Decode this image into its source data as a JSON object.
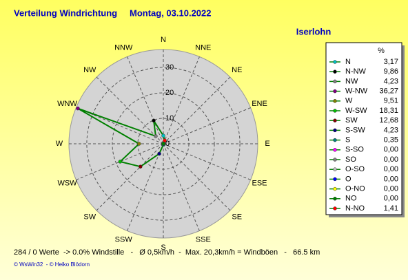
{
  "chart_data": {
    "type": "radar",
    "title": "Verteilung Windrichtung",
    "subtitle": "Montag, 03.10.2022",
    "location": "Iserlohn",
    "categories": [
      "N",
      "NNW",
      "NW",
      "WNW",
      "W",
      "WSW",
      "SW",
      "SSW",
      "S",
      "SSE",
      "SE",
      "ESE",
      "E",
      "ENE",
      "NE",
      "NNE"
    ],
    "direction": "counterclockwise",
    "values": [
      3.17,
      9.86,
      4.23,
      36.27,
      9.51,
      18.31,
      12.68,
      4.23,
      0.35,
      0,
      0,
      0,
      0,
      0,
      0,
      1.41
    ],
    "value_labels": [
      "3,17",
      "9,86",
      "4,23",
      "36,27",
      "9,51",
      "18,31",
      "12,68",
      "4,23",
      "0,35",
      "0,00",
      "0,00",
      "0,00",
      "0,00",
      "0,00",
      "0,00",
      "1,41"
    ],
    "legend_title": "%",
    "legend_names": [
      "N",
      "N-NW",
      "NW",
      "W-NW",
      "W",
      "W-SW",
      "SW",
      "S-SW",
      "S",
      "S-SO",
      "SO",
      "O-SO",
      "O",
      "O-NO",
      "NO",
      "N-NO"
    ],
    "marker_colors": [
      "#00c0c0",
      "#000000",
      "#808080",
      "#800080",
      "#808000",
      "#00c000",
      "#800000",
      "#000080",
      "#008080",
      "#ff00ff",
      "#808080",
      "#c0c0c0",
      "#0000ff",
      "#ffff00",
      "#008000",
      "#ff0000"
    ],
    "color": "#008000",
    "ylim": [
      0,
      37
    ],
    "yticks": [
      0,
      10,
      20,
      30
    ],
    "grid": true,
    "footer": "284 / 0 Werte  -> 0.0% Windstille   -   Ø 0,5km/h  -  Max. 20,3km/h = Windböen   -   66.5 km",
    "copyright": "© WsWin32  - © Heiko Blödorn"
  }
}
